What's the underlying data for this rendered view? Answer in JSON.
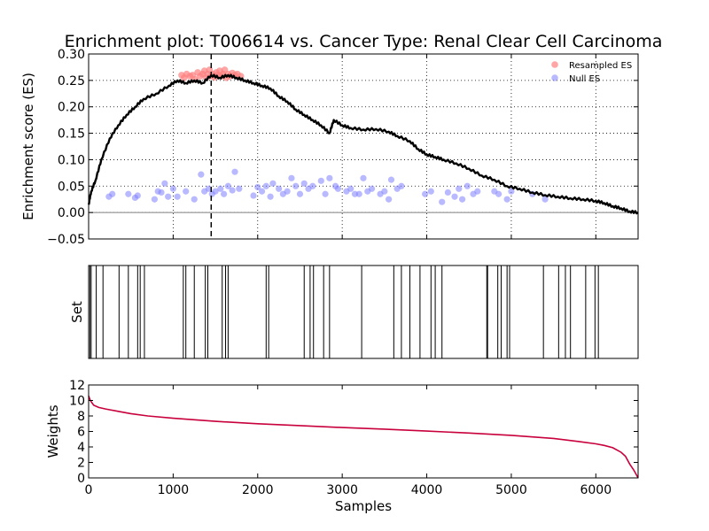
{
  "title": "Enrichment plot: T006614 vs. Cancer Type: Renal Clear Cell Carcinoma",
  "colors": {
    "running_es": "#000000",
    "resampled": "#ff7f7f",
    "null": "#7f7fff",
    "weights": "#c8003c",
    "grid": "#000000"
  },
  "chart_data": [
    {
      "panel": "enrichment",
      "type": "line",
      "ylabel": "Enrichment score (ES)",
      "xlim": [
        0,
        6500
      ],
      "ylim": [
        -0.05,
        0.3
      ],
      "yticks": [
        "−0.05",
        "0.00",
        "0.05",
        "0.10",
        "0.15",
        "0.20",
        "0.25",
        "0.30"
      ],
      "ytick_values": [
        -0.05,
        0.0,
        0.05,
        0.1,
        0.15,
        0.2,
        0.25,
        0.3
      ],
      "xtick_values": [
        1000,
        2000,
        3000,
        4000,
        5000,
        6000
      ],
      "grid": true,
      "peak_x": 1450,
      "legend": {
        "placement": "top-right",
        "entries": [
          "Resampled ES",
          "Null ES"
        ]
      },
      "running_es": [
        [
          0,
          0.015
        ],
        [
          30,
          0.04
        ],
        [
          80,
          0.06
        ],
        [
          150,
          0.1
        ],
        [
          250,
          0.14
        ],
        [
          350,
          0.165
        ],
        [
          450,
          0.185
        ],
        [
          550,
          0.2
        ],
        [
          650,
          0.215
        ],
        [
          800,
          0.225
        ],
        [
          950,
          0.24
        ],
        [
          1050,
          0.25
        ],
        [
          1150,
          0.245
        ],
        [
          1250,
          0.25
        ],
        [
          1350,
          0.245
        ],
        [
          1450,
          0.26
        ],
        [
          1550,
          0.255
        ],
        [
          1650,
          0.26
        ],
        [
          1750,
          0.255
        ],
        [
          1850,
          0.25
        ],
        [
          1950,
          0.245
        ],
        [
          2050,
          0.24
        ],
        [
          2150,
          0.235
        ],
        [
          2250,
          0.22
        ],
        [
          2350,
          0.21
        ],
        [
          2450,
          0.195
        ],
        [
          2550,
          0.185
        ],
        [
          2650,
          0.175
        ],
        [
          2750,
          0.165
        ],
        [
          2850,
          0.15
        ],
        [
          2900,
          0.175
        ],
        [
          3000,
          0.165
        ],
        [
          3100,
          0.16
        ],
        [
          3250,
          0.157
        ],
        [
          3400,
          0.158
        ],
        [
          3550,
          0.153
        ],
        [
          3650,
          0.145
        ],
        [
          3800,
          0.135
        ],
        [
          3900,
          0.12
        ],
        [
          4000,
          0.11
        ],
        [
          4100,
          0.105
        ],
        [
          4200,
          0.1
        ],
        [
          4350,
          0.093
        ],
        [
          4500,
          0.083
        ],
        [
          4650,
          0.07
        ],
        [
          4800,
          0.062
        ],
        [
          4950,
          0.05
        ],
        [
          5100,
          0.045
        ],
        [
          5250,
          0.038
        ],
        [
          5400,
          0.033
        ],
        [
          5550,
          0.03
        ],
        [
          5700,
          0.027
        ],
        [
          5850,
          0.025
        ],
        [
          6000,
          0.022
        ],
        [
          6100,
          0.018
        ],
        [
          6200,
          0.012
        ],
        [
          6300,
          0.008
        ],
        [
          6400,
          0.002
        ],
        [
          6500,
          0.0
        ]
      ],
      "resampled_es": [
        [
          1100,
          0.26
        ],
        [
          1130,
          0.255
        ],
        [
          1160,
          0.262
        ],
        [
          1200,
          0.258
        ],
        [
          1230,
          0.26
        ],
        [
          1260,
          0.252
        ],
        [
          1290,
          0.265
        ],
        [
          1320,
          0.258
        ],
        [
          1350,
          0.262
        ],
        [
          1370,
          0.268
        ],
        [
          1390,
          0.255
        ],
        [
          1410,
          0.262
        ],
        [
          1430,
          0.27
        ],
        [
          1450,
          0.258
        ],
        [
          1470,
          0.262
        ],
        [
          1490,
          0.256
        ],
        [
          1510,
          0.265
        ],
        [
          1530,
          0.26
        ],
        [
          1550,
          0.268
        ],
        [
          1570,
          0.258
        ],
        [
          1590,
          0.262
        ],
        [
          1610,
          0.27
        ],
        [
          1630,
          0.255
        ],
        [
          1650,
          0.262
        ],
        [
          1670,
          0.258
        ],
        [
          1700,
          0.264
        ],
        [
          1730,
          0.26
        ],
        [
          1760,
          0.262
        ],
        [
          1800,
          0.258
        ]
      ],
      "null_es": [
        [
          240,
          0.03
        ],
        [
          280,
          0.035
        ],
        [
          470,
          0.035
        ],
        [
          550,
          0.028
        ],
        [
          580,
          0.032
        ],
        [
          780,
          0.025
        ],
        [
          820,
          0.04
        ],
        [
          860,
          0.038
        ],
        [
          900,
          0.055
        ],
        [
          940,
          0.03
        ],
        [
          1000,
          0.045
        ],
        [
          1050,
          0.03
        ],
        [
          1150,
          0.04
        ],
        [
          1250,
          0.025
        ],
        [
          1330,
          0.072
        ],
        [
          1370,
          0.04
        ],
        [
          1420,
          0.045
        ],
        [
          1460,
          0.035
        ],
        [
          1500,
          0.04
        ],
        [
          1560,
          0.045
        ],
        [
          1600,
          0.035
        ],
        [
          1650,
          0.05
        ],
        [
          1700,
          0.042
        ],
        [
          1730,
          0.077
        ],
        [
          1780,
          0.045
        ],
        [
          1950,
          0.032
        ],
        [
          2000,
          0.048
        ],
        [
          2050,
          0.04
        ],
        [
          2100,
          0.05
        ],
        [
          2150,
          0.03
        ],
        [
          2180,
          0.055
        ],
        [
          2250,
          0.045
        ],
        [
          2300,
          0.035
        ],
        [
          2350,
          0.04
        ],
        [
          2400,
          0.065
        ],
        [
          2450,
          0.05
        ],
        [
          2500,
          0.035
        ],
        [
          2550,
          0.055
        ],
        [
          2600,
          0.045
        ],
        [
          2650,
          0.05
        ],
        [
          2750,
          0.06
        ],
        [
          2800,
          0.035
        ],
        [
          2850,
          0.065
        ],
        [
          2920,
          0.05
        ],
        [
          2950,
          0.045
        ],
        [
          3050,
          0.04
        ],
        [
          3100,
          0.045
        ],
        [
          3150,
          0.035
        ],
        [
          3200,
          0.035
        ],
        [
          3250,
          0.065
        ],
        [
          3300,
          0.04
        ],
        [
          3350,
          0.045
        ],
        [
          3450,
          0.035
        ],
        [
          3500,
          0.04
        ],
        [
          3550,
          0.025
        ],
        [
          3580,
          0.062
        ],
        [
          3650,
          0.045
        ],
        [
          3700,
          0.05
        ],
        [
          3980,
          0.035
        ],
        [
          4050,
          0.04
        ],
        [
          4180,
          0.02
        ],
        [
          4250,
          0.038
        ],
        [
          4330,
          0.03
        ],
        [
          4380,
          0.045
        ],
        [
          4420,
          0.025
        ],
        [
          4480,
          0.05
        ],
        [
          4550,
          0.035
        ],
        [
          4600,
          0.04
        ],
        [
          4800,
          0.04
        ],
        [
          4850,
          0.035
        ],
        [
          4950,
          0.025
        ],
        [
          5000,
          0.04
        ],
        [
          5250,
          0.035
        ],
        [
          5400,
          0.025
        ]
      ]
    },
    {
      "panel": "set",
      "type": "barcode",
      "ylabel": "Set",
      "xlim": [
        0,
        6500
      ],
      "hits": [
        15,
        30,
        90,
        170,
        360,
        470,
        580,
        610,
        660,
        1120,
        1150,
        1250,
        1380,
        1410,
        1580,
        1620,
        1650,
        2100,
        2130,
        2550,
        2620,
        2660,
        2780,
        2850,
        3230,
        3610,
        3700,
        3800,
        3920,
        4050,
        4100,
        4180,
        4710,
        4720,
        4840,
        4880,
        4950,
        4980,
        5380,
        5560,
        5640,
        5700,
        5880,
        5990,
        6030
      ]
    },
    {
      "panel": "weights",
      "type": "line",
      "ylabel": "Weights",
      "xlabel": "Samples",
      "xlim": [
        0,
        6500
      ],
      "ylim": [
        0,
        12
      ],
      "yticks": [
        "0",
        "2",
        "4",
        "6",
        "8",
        "10",
        "12"
      ],
      "ytick_values": [
        0,
        2,
        4,
        6,
        8,
        10,
        12
      ],
      "xticks": [
        "0",
        "1000",
        "2000",
        "3000",
        "4000",
        "5000",
        "6000"
      ],
      "xtick_values": [
        0,
        1000,
        2000,
        3000,
        4000,
        5000,
        6000
      ],
      "weights": [
        [
          0,
          10.6
        ],
        [
          20,
          10.0
        ],
        [
          60,
          9.4
        ],
        [
          120,
          9.1
        ],
        [
          200,
          8.9
        ],
        [
          350,
          8.6
        ],
        [
          500,
          8.3
        ],
        [
          700,
          8.0
        ],
        [
          1000,
          7.7
        ],
        [
          1500,
          7.3
        ],
        [
          2000,
          7.0
        ],
        [
          2500,
          6.75
        ],
        [
          3000,
          6.5
        ],
        [
          3500,
          6.3
        ],
        [
          4000,
          6.05
        ],
        [
          4500,
          5.8
        ],
        [
          5000,
          5.5
        ],
        [
          5500,
          5.1
        ],
        [
          5800,
          4.7
        ],
        [
          6000,
          4.4
        ],
        [
          6100,
          4.2
        ],
        [
          6200,
          3.9
        ],
        [
          6300,
          3.3
        ],
        [
          6350,
          2.8
        ],
        [
          6400,
          1.8
        ],
        [
          6450,
          1.0
        ],
        [
          6500,
          0.0
        ]
      ]
    }
  ]
}
